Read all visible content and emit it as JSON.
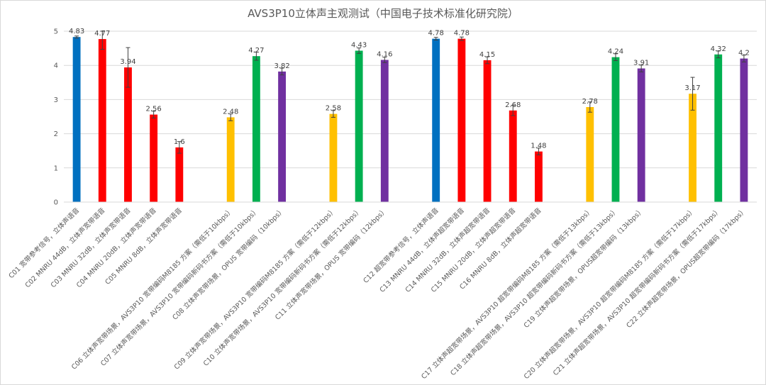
{
  "chart_data": {
    "type": "bar",
    "title": "AVS3P10立体声主观测试（中国电子技术标准化研究院）",
    "xlabel": "",
    "ylabel": "",
    "ylim": [
      0,
      5
    ],
    "yticks": [
      0,
      1,
      2,
      3,
      4,
      5
    ],
    "grid": true,
    "legend": "none",
    "colors": {
      "reference": "#0070C0",
      "mnru": "#FF0000",
      "avs3p10_m8185": "#FFC000",
      "avs3p10_new": "#00B050",
      "opus": "#7030A0",
      "error_bar": "#404040"
    },
    "groups": [
      {
        "categories": [
          {
            "label": "C01 宽带参考信号，立体声语音",
            "value": 4.83,
            "error": 0.03,
            "color_key": "reference"
          },
          {
            "label": "C02 MNRU 44dB，立体声宽带语音",
            "value": 4.77,
            "error": 0.3,
            "color_key": "mnru"
          },
          {
            "label": "C03 MNRU 32dB，立体声宽带语音",
            "value": 3.94,
            "error": 0.58,
            "color_key": "mnru"
          },
          {
            "label": "C04 MNRU 20dB，立体声宽带语音",
            "value": 2.56,
            "error": 0.1,
            "color_key": "mnru"
          },
          {
            "label": "C05 MNRU 8dB，立体声宽带语音",
            "value": 1.6,
            "error": 0.17,
            "color_key": "mnru"
          }
        ]
      },
      {
        "categories": [
          {
            "label": "C06 立体声宽带场景，AVS3P10 宽带编码M8185 方案（需低于10kbps）",
            "value": 2.48,
            "error": 0.1,
            "color_key": "avs3p10_m8185"
          },
          {
            "label": "C07 立体声宽带场景，AVS3P10 宽带编码新码书方案（需低于10kbps）",
            "value": 4.27,
            "error": 0.12,
            "color_key": "avs3p10_new"
          },
          {
            "label": "C08 立体声宽带场景，OPUS 宽带编码（10kbps）",
            "value": 3.82,
            "error": 0.1,
            "color_key": "opus"
          }
        ]
      },
      {
        "categories": [
          {
            "label": "C09 立体声宽带场景，AVS3P10 宽带编码M8185 方案（需低于12kbps）",
            "value": 2.58,
            "error": 0.1,
            "color_key": "avs3p10_m8185"
          },
          {
            "label": "C10 立体声宽带场景，AVS3P10 宽带编码新码书方案（需低于12kbps）",
            "value": 4.43,
            "error": 0.08,
            "color_key": "avs3p10_new"
          },
          {
            "label": "C11 立体声宽带场景，OPUS 宽带编码（12kbps）",
            "value": 4.16,
            "error": 0.08,
            "color_key": "opus"
          }
        ]
      },
      {
        "categories": [
          {
            "label": "C12 超宽带参考信号，立体声语音",
            "value": 4.78,
            "error": 0.04,
            "color_key": "reference"
          },
          {
            "label": "C13 MNRU 44dB，立体声超宽带语音",
            "value": 4.78,
            "error": 0.05,
            "color_key": "mnru"
          },
          {
            "label": "C14 MNRU 32dB，立体声超宽带语音",
            "value": 4.15,
            "error": 0.1,
            "color_key": "mnru"
          },
          {
            "label": "C15 MNRU 20dB，立体声超宽带语音",
            "value": 2.68,
            "error": 0.15,
            "color_key": "mnru"
          },
          {
            "label": "C16 MNRU 8dB，立体声超宽带语音",
            "value": 1.48,
            "error": 0.1,
            "color_key": "mnru"
          }
        ]
      },
      {
        "categories": [
          {
            "label": "C17 立体声超宽带场景，AVS3P10 超宽带编码M8185 方案（需低于13kbps）",
            "value": 2.78,
            "error": 0.15,
            "color_key": "avs3p10_m8185"
          },
          {
            "label": "C18 立体声超宽带场景，AVS3P10 超宽带编码新码书方案（需低于13kbps）",
            "value": 4.24,
            "error": 0.1,
            "color_key": "avs3p10_new"
          },
          {
            "label": "C19 立体声超宽带场景，OPUS超宽带编码（13kbps）",
            "value": 3.91,
            "error": 0.1,
            "color_key": "opus"
          }
        ]
      },
      {
        "categories": [
          {
            "label": "C20 立体声超宽带场景，AVS3P10 超宽带编码M8185 方案（需低于17kbps）",
            "value": 3.17,
            "error": 0.48,
            "color_key": "avs3p10_m8185"
          },
          {
            "label": "C21 立体声超宽带场景，AVS3P10 超宽带编码新码书方案（需低于17kbps）",
            "value": 4.32,
            "error": 0.1,
            "color_key": "avs3p10_new"
          },
          {
            "label": "C22 立体声超宽带场景，OPUS超宽带编码（17kbps）",
            "value": 4.2,
            "error": 0.1,
            "color_key": "opus"
          }
        ]
      }
    ]
  }
}
